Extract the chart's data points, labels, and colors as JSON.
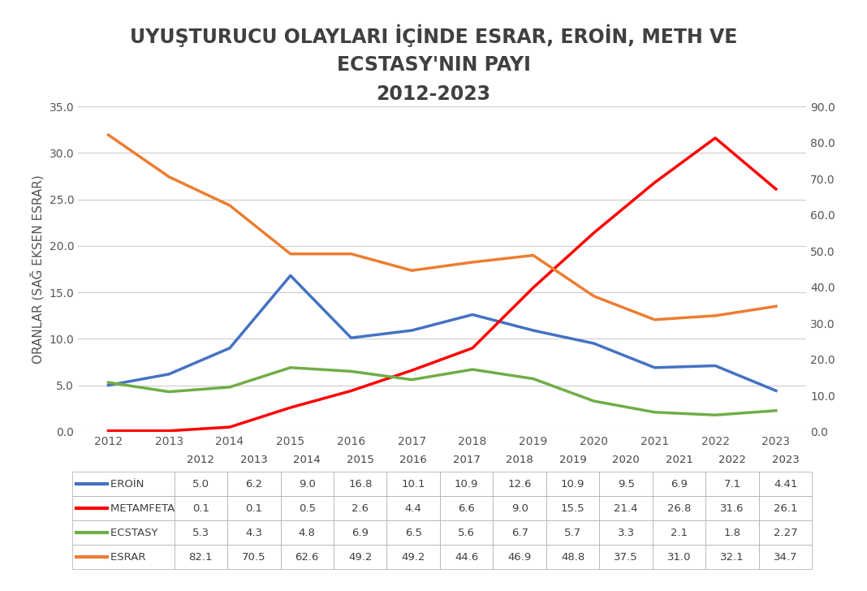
{
  "title_line1": "UYUŞTURUCU OLAYLARI İÇİNDE ESRAR, EROİN, METH VE",
  "title_line2": "ECSTASY'NIN PAYI",
  "title_line3": "2012-2023",
  "years": [
    2012,
    2013,
    2014,
    2015,
    2016,
    2017,
    2018,
    2019,
    2020,
    2021,
    2022,
    2023
  ],
  "eroin": [
    5.0,
    6.2,
    9.0,
    16.8,
    10.1,
    10.9,
    12.6,
    10.9,
    9.5,
    6.9,
    7.1,
    4.41
  ],
  "metamfetamin": [
    0.1,
    0.1,
    0.5,
    2.6,
    4.4,
    6.6,
    9.0,
    15.5,
    21.4,
    26.8,
    31.6,
    26.1
  ],
  "ecstasy": [
    5.3,
    4.3,
    4.8,
    6.9,
    6.5,
    5.6,
    6.7,
    5.7,
    3.3,
    2.1,
    1.8,
    2.27
  ],
  "esrar": [
    82.1,
    70.5,
    62.6,
    49.2,
    49.2,
    44.6,
    46.9,
    48.8,
    37.5,
    31.0,
    32.1,
    34.7
  ],
  "eroin_color": "#4472C4",
  "metamfetamin_color": "#FF0000",
  "ecstasy_color": "#70AD47",
  "esrar_color": "#ED7D31",
  "ylabel_left": "ORANLAR (SAĞ EKSEN ESRAR)",
  "left_ylim": [
    0.0,
    35.0
  ],
  "right_ylim": [
    0.0,
    90.0
  ],
  "left_yticks": [
    0.0,
    5.0,
    10.0,
    15.0,
    20.0,
    25.0,
    30.0,
    35.0
  ],
  "right_yticks": [
    0.0,
    10.0,
    20.0,
    30.0,
    40.0,
    50.0,
    60.0,
    70.0,
    80.0,
    90.0
  ],
  "background_color": "#FFFFFF",
  "title_fontsize": 17,
  "label_fontsize": 11,
  "tick_fontsize": 10,
  "line_width": 2.5,
  "series_labels": [
    "EROİN",
    "METAMFETAMİN",
    "ECSTASY",
    "ESRAR"
  ],
  "eroin_str": [
    "5.0",
    "6.2",
    "9.0",
    "16.8",
    "10.1",
    "10.9",
    "12.6",
    "10.9",
    "9.5",
    "6.9",
    "7.1",
    "4.41"
  ],
  "metamfetamin_str": [
    "0.1",
    "0.1",
    "0.5",
    "2.6",
    "4.4",
    "6.6",
    "9.0",
    "15.5",
    "21.4",
    "26.8",
    "31.6",
    "26.1"
  ],
  "ecstasy_str": [
    "5.3",
    "4.3",
    "4.8",
    "6.9",
    "6.5",
    "5.6",
    "6.7",
    "5.7",
    "3.3",
    "2.1",
    "1.8",
    "2.27"
  ],
  "esrar_str": [
    "82.1",
    "70.5",
    "62.6",
    "49.2",
    "49.2",
    "44.6",
    "46.9",
    "48.8",
    "37.5",
    "31.0",
    "32.1",
    "34.7"
  ]
}
